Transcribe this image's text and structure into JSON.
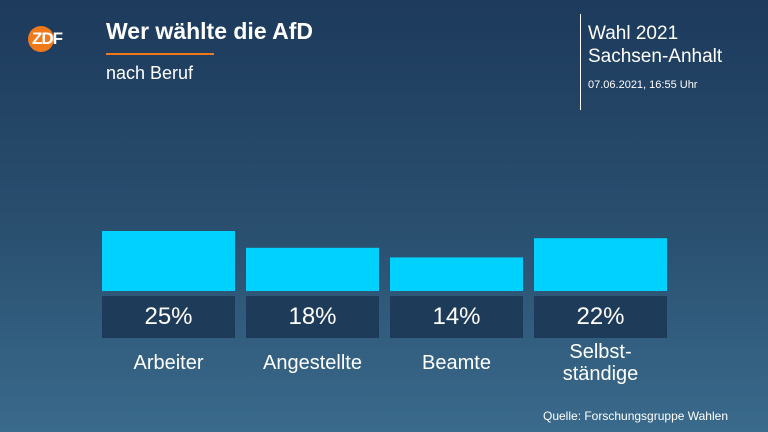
{
  "logo_text": "ZDF",
  "header": {
    "title": "Wer wählte die AfD",
    "subtitle": "nach Beruf"
  },
  "election": {
    "line1": "Wahl 2021",
    "line2": "Sachsen-Anhalt",
    "timestamp": "07.06.2021, 16:55 Uhr"
  },
  "colors": {
    "bar": "#00d1ff",
    "accent": "#f07a1a"
  },
  "chart_data": {
    "type": "bar",
    "categories": [
      "Arbeiter",
      "Angestellte",
      "Beamte",
      "Selbst-\nständige"
    ],
    "values": [
      25,
      18,
      14,
      22
    ],
    "value_labels": [
      "25%",
      "18%",
      "14%",
      "22%"
    ],
    "title": "Wer wählte die AfD",
    "subtitle": "nach Beruf",
    "unit": "%",
    "grid": false,
    "legend": "none"
  },
  "source": "Quelle: Forschungsgruppe Wahlen"
}
